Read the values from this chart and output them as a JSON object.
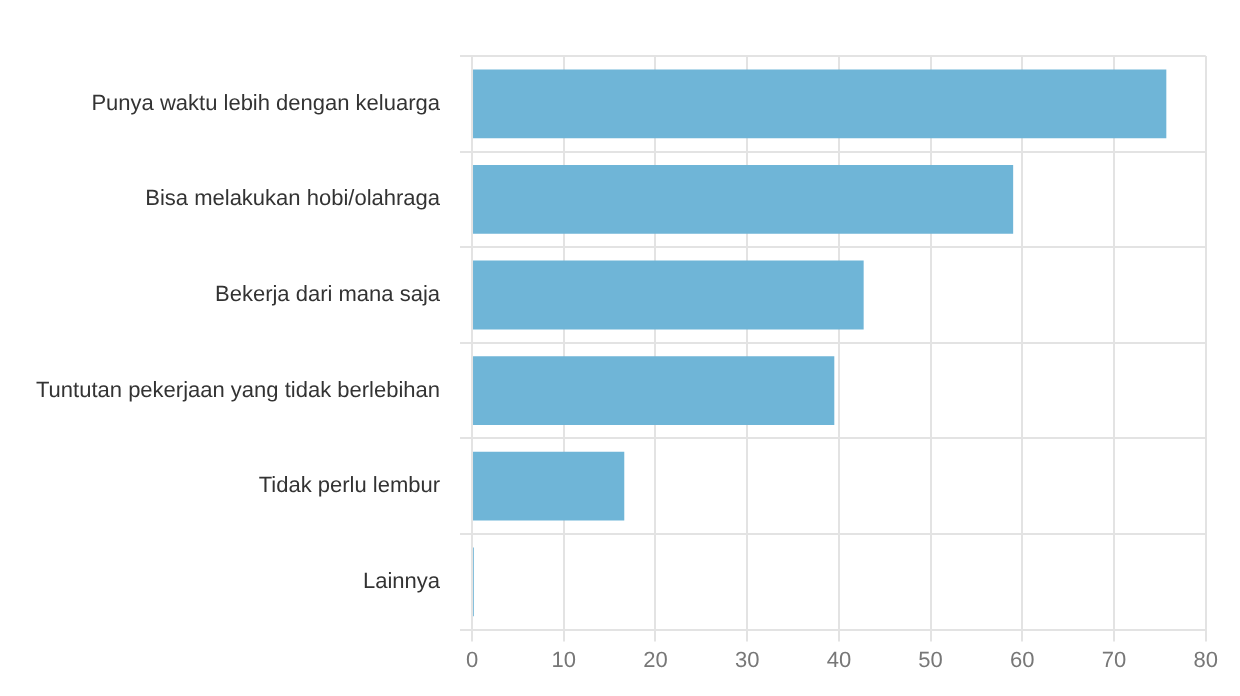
{
  "chart_data": {
    "type": "bar",
    "orientation": "horizontal",
    "categories": [
      "Punya waktu lebih dengan keluarga",
      "Bisa melakukan hobi/olahraga",
      "Bekerja dari mana saja",
      "Tuntutan pekerjaan yang tidak berlebihan",
      "Tidak perlu lembur",
      "Lainnya"
    ],
    "values": [
      75.7,
      59,
      42.7,
      39.5,
      16.6,
      0.2
    ],
    "color": "#6fb5d7",
    "xlim": [
      0,
      80
    ],
    "xticks": [
      0,
      10,
      20,
      30,
      40,
      50,
      60,
      70,
      80
    ],
    "grid": true
  }
}
